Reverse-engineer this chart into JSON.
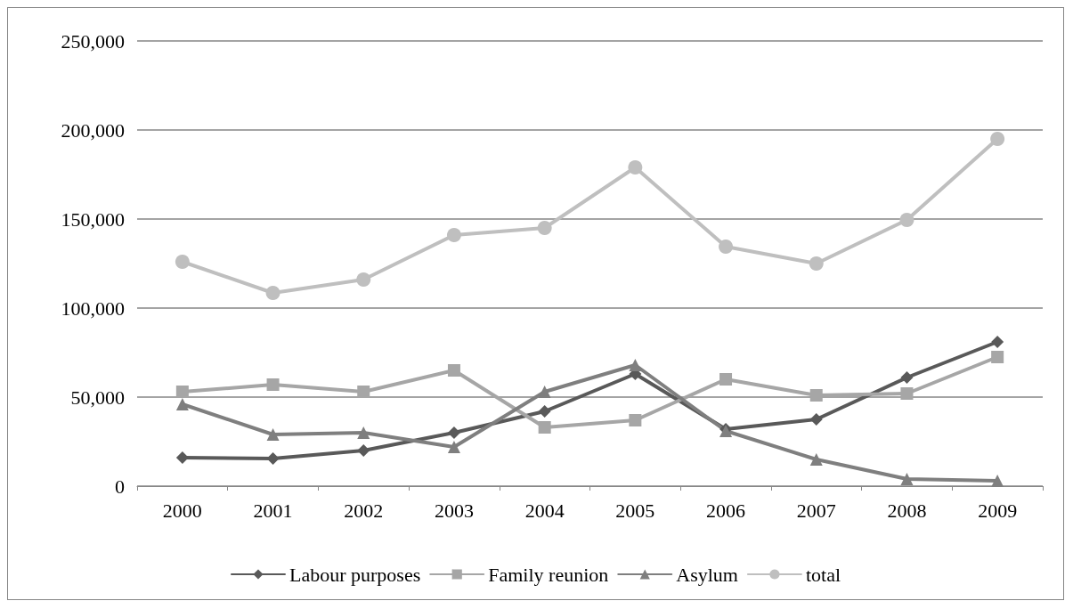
{
  "chart_data": {
    "type": "line",
    "categories": [
      "2000",
      "2001",
      "2002",
      "2003",
      "2004",
      "2005",
      "2006",
      "2007",
      "2008",
      "2009"
    ],
    "series": [
      {
        "name": "Labour purposes",
        "color": "#595959",
        "marker": "diamond",
        "values": [
          16000,
          15500,
          20000,
          30000,
          42000,
          63000,
          32000,
          37500,
          61000,
          81000
        ]
      },
      {
        "name": "Family reunion",
        "color": "#a6a6a6",
        "marker": "square",
        "values": [
          53000,
          57000,
          53000,
          65000,
          33000,
          37000,
          60000,
          51000,
          52000,
          72500
        ]
      },
      {
        "name": "Asylum",
        "color": "#7f7f7f",
        "marker": "triangle",
        "values": [
          46000,
          29000,
          30000,
          22000,
          53000,
          68000,
          31000,
          15000,
          4000,
          3000
        ]
      },
      {
        "name": "total",
        "color": "#bfbfbf",
        "marker": "circle",
        "values": [
          126000,
          108500,
          116000,
          141000,
          145000,
          179000,
          134500,
          125000,
          149500,
          195000
        ]
      }
    ],
    "ylim": [
      0,
      250000
    ],
    "yticks": [
      {
        "value": 0,
        "label": "0"
      },
      {
        "value": 50000,
        "label": "50,000"
      },
      {
        "value": 100000,
        "label": "100,000"
      },
      {
        "value": 150000,
        "label": "150,000"
      },
      {
        "value": 200000,
        "label": "200,000"
      },
      {
        "value": 250000,
        "label": "250,000"
      }
    ],
    "grid": "y",
    "legend": "bottom",
    "line_style": "solid"
  }
}
